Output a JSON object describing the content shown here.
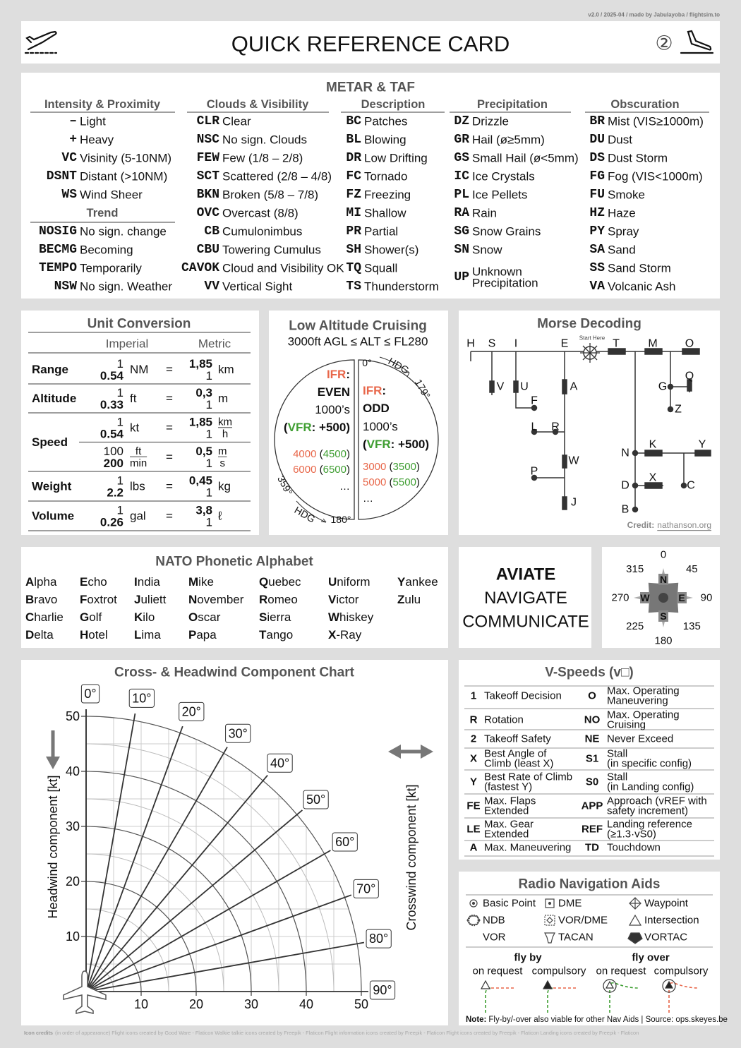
{
  "meta": "v2.0 / 2025-04 / made by Jabulayoba / flightsim.to",
  "header": {
    "title": "QUICK REFERENCE CARD",
    "page": "②"
  },
  "metar": {
    "title": "METAR & TAF",
    "columns": [
      {
        "heading": "Intensity & Proximity",
        "items": [
          [
            "–",
            "Light"
          ],
          [
            "+",
            "Heavy"
          ],
          [
            "VC",
            "Visinity (5-10NM)"
          ],
          [
            "DSNT",
            "Distant (>10NM)"
          ],
          [
            "WS",
            "Wind Sheer"
          ]
        ],
        "subheading": "Trend",
        "subitems": [
          [
            "NOSIG",
            "No sign. change"
          ],
          [
            "BECMG",
            "Becoming"
          ],
          [
            "TEMPO",
            "Temporarily"
          ],
          [
            "NSW",
            "No sign. Weather"
          ]
        ]
      },
      {
        "heading": "Clouds & Visibility",
        "items": [
          [
            "CLR",
            "Clear"
          ],
          [
            "NSC",
            "No sign. Clouds"
          ],
          [
            "FEW",
            "Few (1/8 – 2/8)"
          ],
          [
            "SCT",
            "Scattered (2/8 – 4/8)"
          ],
          [
            "BKN",
            "Broken (5/8 – 7/8)"
          ],
          [
            "OVC",
            "Overcast (8/8)"
          ],
          [
            "CB",
            "Cumulonimbus"
          ],
          [
            "CBU",
            "Towering Cumulus"
          ],
          [
            "CAVOK",
            "Cloud and Visibility OK"
          ],
          [
            "VV",
            "Vertical Sight"
          ]
        ]
      },
      {
        "heading": "Description",
        "items": [
          [
            "BC",
            "Patches"
          ],
          [
            "BL",
            "Blowing"
          ],
          [
            "DR",
            "Low Drifting"
          ],
          [
            "FC",
            "Tornado"
          ],
          [
            "FZ",
            "Freezing"
          ],
          [
            "MI",
            "Shallow"
          ],
          [
            "PR",
            "Partial"
          ],
          [
            "SH",
            "Shower(s)"
          ],
          [
            "TQ",
            "Squall"
          ],
          [
            "TS",
            "Thunderstorm"
          ]
        ]
      },
      {
        "heading": "Precipitation",
        "items": [
          [
            "DZ",
            "Drizzle"
          ],
          [
            "GR",
            "Hail (ø≥5mm)"
          ],
          [
            "GS",
            "Small Hail (ø<5mm)"
          ],
          [
            "IC",
            "Ice Crystals"
          ],
          [
            "PL",
            "Ice Pellets"
          ],
          [
            "RA",
            "Rain"
          ],
          [
            "SG",
            "Snow Grains"
          ],
          [
            "SN",
            "Snow"
          ],
          [
            "UP",
            [
              "Unknown",
              "Precipitation"
            ]
          ]
        ]
      },
      {
        "heading": "Obscuration",
        "items": [
          [
            "BR",
            "Mist (VIS≥1000m)"
          ],
          [
            "DU",
            "Dust"
          ],
          [
            "DS",
            "Dust Storm"
          ],
          [
            "FG",
            "Fog (VIS<1000m)"
          ],
          [
            "FU",
            "Smoke"
          ],
          [
            "HZ",
            "Haze"
          ],
          [
            "PY",
            "Spray"
          ],
          [
            "SA",
            "Sand"
          ],
          [
            "SS",
            "Sand Storm"
          ],
          [
            "VA",
            "Volcanic Ash"
          ]
        ]
      }
    ]
  },
  "units": {
    "title": "Unit Conversion",
    "headers": [
      "Imperial",
      "Metric"
    ],
    "equals": "=",
    "rows": [
      {
        "label": "Range",
        "lines": [
          {
            "imperial": [
              "1",
              "0.54"
            ],
            "imperial_unit": [
              "NM"
            ],
            "metric": [
              "1,85",
              "1"
            ],
            "metric_unit": [
              "km"
            ]
          }
        ]
      },
      {
        "label": "Altitude",
        "lines": [
          {
            "imperial": [
              "1",
              "0.33"
            ],
            "imperial_unit": [
              "ft"
            ],
            "metric": [
              "0,3",
              "1"
            ],
            "metric_unit": [
              "m"
            ]
          }
        ]
      },
      {
        "label": "Speed",
        "lines": [
          {
            "imperial": [
              "1",
              "0.54"
            ],
            "imperial_unit": [
              "kt"
            ],
            "metric": [
              "1,85",
              "1"
            ],
            "metric_unit": [
              "km",
              "h"
            ]
          },
          {
            "imperial": [
              "100",
              "200"
            ],
            "imperial_unit": [
              "ft",
              "min"
            ],
            "metric": [
              "0,5",
              "1"
            ],
            "metric_unit": [
              "m",
              "s"
            ]
          }
        ]
      },
      {
        "label": "Weight",
        "lines": [
          {
            "imperial": [
              "1",
              "2.2"
            ],
            "imperial_unit": [
              "lbs"
            ],
            "metric": [
              "0,45",
              "1"
            ],
            "metric_unit": [
              "kg"
            ]
          }
        ]
      },
      {
        "label": "Volume",
        "lines": [
          {
            "imperial": [
              "1",
              "0.26"
            ],
            "imperial_unit": [
              "gal"
            ],
            "metric": [
              "3,8",
              "1"
            ],
            "metric_unit": [
              "ℓ"
            ]
          }
        ]
      }
    ]
  },
  "cruising": {
    "title": "Low Altitude Cruising",
    "subtitle": "3000ft AGL ≤ ALT ≤ FL280",
    "left": [
      [
        [
          "IFR",
          "#e8674a",
          true
        ],
        [
          ":",
          "#111",
          true
        ]
      ],
      [
        [
          "EVEN",
          "#111",
          true
        ]
      ],
      [
        [
          "1000’s",
          "#111",
          false
        ]
      ],
      [
        [
          "(",
          "#111",
          true
        ],
        [
          "VFR",
          "#3f9e32",
          true
        ],
        [
          ": +500)",
          "#111",
          true
        ]
      ],
      [
        [
          "4000",
          "#e8674a",
          false
        ],
        [
          " (",
          "#111",
          false
        ],
        [
          "4500",
          "#3f9e32",
          false
        ],
        [
          ")",
          "#111",
          false
        ]
      ],
      [
        [
          "6000",
          "#e8674a",
          false
        ],
        [
          " (",
          "#111",
          false
        ],
        [
          "6500",
          "#3f9e32",
          false
        ],
        [
          ")",
          "#111",
          false
        ]
      ],
      [
        [
          "…",
          "#111",
          false
        ]
      ]
    ],
    "right": [
      [
        [
          "IFR",
          "#e8674a",
          true
        ],
        [
          ":",
          "#111",
          true
        ]
      ],
      [
        [
          "ODD",
          "#111",
          true
        ]
      ],
      [
        [
          "1000’s",
          "#111",
          false
        ]
      ],
      [
        [
          "(",
          "#111",
          true
        ],
        [
          "VFR",
          "#3f9e32",
          true
        ],
        [
          ": +500)",
          "#111",
          true
        ]
      ],
      [
        [
          "3000",
          "#e8674a",
          false
        ],
        [
          " (",
          "#111",
          false
        ],
        [
          "3500",
          "#3f9e32",
          false
        ],
        [
          ")",
          "#111",
          false
        ]
      ],
      [
        [
          "5000",
          "#e8674a",
          false
        ],
        [
          " (",
          "#111",
          false
        ],
        [
          "5500",
          "#3f9e32",
          false
        ],
        [
          ")",
          "#111",
          false
        ]
      ],
      [
        [
          "…",
          "#111",
          false
        ]
      ]
    ],
    "labels": [
      "0°",
      "HDG",
      "179°",
      "359°",
      "HDG",
      "180°"
    ]
  },
  "morse": {
    "title": "Morse Decoding",
    "start": "Start Here",
    "letters": [
      "H",
      "S",
      "I",
      "E",
      "T",
      "M",
      "O",
      "V",
      "U",
      "A",
      "F",
      "L",
      "R",
      "W",
      "P",
      "J",
      "G",
      "Q",
      "Z",
      "N",
      "K",
      "Y",
      "X",
      "C",
      "D",
      "B"
    ],
    "credit": [
      "Credit:",
      "nathanson.org"
    ]
  },
  "nato": {
    "title": "NATO Phonetic Alphabet",
    "words": [
      "Alpha",
      "Bravo",
      "Charlie",
      "Delta",
      "Echo",
      "Foxtrot",
      "Golf",
      "Hotel",
      "India",
      "Juliett",
      "Kilo",
      "Lima",
      "Mike",
      "November",
      "Oscar",
      "Papa",
      "Quebec",
      "Romeo",
      "Sierra",
      "Tango",
      "Uniform",
      "Victor",
      "Whiskey",
      "X-Ray",
      "Yankee",
      "Zulu"
    ]
  },
  "aviate": [
    "AVIATE",
    "NAVIGATE",
    "COMMUNICATE"
  ],
  "compass": {
    "headings": [
      0,
      45,
      90,
      135,
      180,
      225,
      270,
      315
    ],
    "cardinals": [
      "N",
      "E",
      "S",
      "W"
    ]
  },
  "wind": {
    "title": "Cross- & Headwind Component Chart",
    "y_label": "Headwind component [kt]",
    "x_label": "Crosswind component [kt]",
    "xlim": [
      0,
      50
    ],
    "ylim": [
      0,
      50
    ],
    "ticks": [
      10,
      20,
      30,
      40,
      50
    ],
    "angles": [
      {
        "value": 0,
        "label": "0°"
      },
      {
        "value": 10,
        "label": "10°"
      },
      {
        "value": 20,
        "label": "20°"
      },
      {
        "value": 30,
        "label": "30°"
      },
      {
        "value": 40,
        "label": "40°"
      },
      {
        "value": 50,
        "label": "50°"
      },
      {
        "value": 60,
        "label": "60°"
      },
      {
        "value": 70,
        "label": "70°"
      },
      {
        "value": 80,
        "label": "80°"
      },
      {
        "value": 90,
        "label": "90°"
      }
    ]
  },
  "vspeeds": {
    "title": "V-Speeds (v□)",
    "rows": [
      [
        "1",
        [
          "Takeoff Decision"
        ],
        "O",
        [
          "Max. Operating",
          "Maneuvering"
        ]
      ],
      [
        "R",
        [
          "Rotation"
        ],
        "NO",
        [
          "Max. Operating",
          "Cruising"
        ]
      ],
      [
        "2",
        [
          "Takeoff Safety"
        ],
        "NE",
        [
          "Never Exceed"
        ]
      ],
      [
        "X",
        [
          "Best Angle of",
          "Climb (least X)"
        ],
        "S1",
        [
          "Stall",
          "(in specific config)"
        ]
      ],
      [
        "Y",
        [
          "Best Rate of Climb",
          "(fastest Y)"
        ],
        "S0",
        [
          "Stall",
          "(in Landing config)"
        ]
      ],
      [
        "FE",
        [
          "Max. Flaps",
          "Extended"
        ],
        "APP",
        [
          "Approach (vREF with",
          "safety increment)"
        ]
      ],
      [
        "LE",
        [
          "Max. Gear",
          "Extended"
        ],
        "REF",
        [
          "Landing reference",
          "(≥1.3·vS0)"
        ]
      ],
      [
        "A",
        [
          "Max. Maneuvering"
        ],
        "TD",
        [
          "Touchdown"
        ]
      ]
    ]
  },
  "radio": {
    "title": "Radio Navigation Aids",
    "aids": [
      "Basic Point",
      "DME",
      "Waypoint",
      "NDB",
      "VOR/DME",
      "Intersection",
      "VOR",
      "TACAN",
      "VORTAC"
    ],
    "modes": [
      "fly by",
      "fly over"
    ],
    "options": [
      "on request",
      "compulsory",
      "on request",
      "compulsory"
    ],
    "note": [
      "Note:",
      "Fly-by/-over also viable for other Nav Aids | Source: ops.skeyes.be"
    ]
  },
  "footer": [
    "Icon credits",
    "(in order of appearance) Flight icons created by Good Ware - Flaticon Walkie talkie icons created by Freepik - Flaticon Flight information icons created by Freepik - Flaticon Flight icons created by Freepik - Flaticon Landing icons created by Freepik - Flaticon"
  ]
}
